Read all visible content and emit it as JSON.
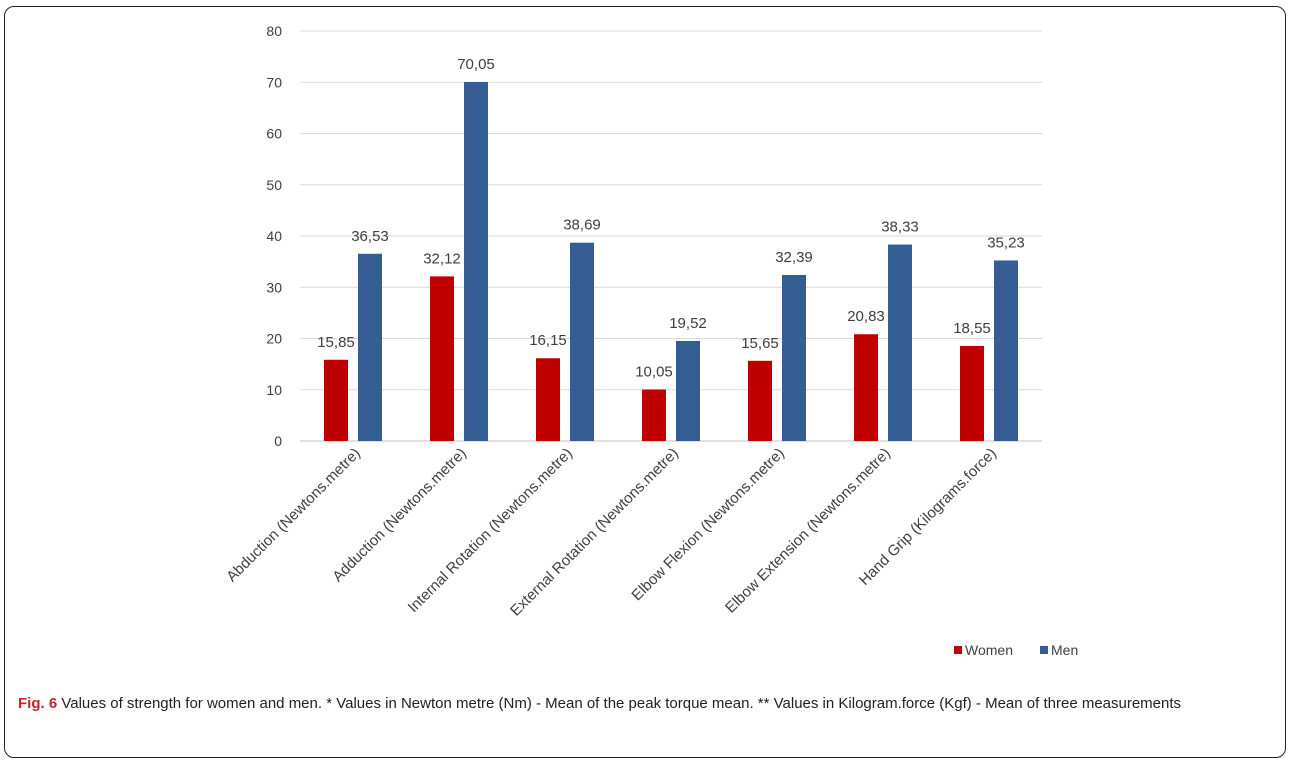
{
  "chart_data": {
    "type": "bar",
    "title": "",
    "xlabel": "",
    "ylabel": "",
    "ylim": [
      0,
      80
    ],
    "yticks": [
      0,
      10,
      20,
      30,
      40,
      50,
      60,
      70,
      80
    ],
    "grid": true,
    "legend_position": "bottom-right",
    "categories": [
      "Abduction (Newtons.metre)",
      "Adduction (Newtons.metre)",
      "Internal Rotation (Newtons.metre)",
      "External Rotation (Newtons.metre)",
      "Elbow Flexion (Newtons.metre)",
      "Elbow Extension (Newtons.metre)",
      "Hand Grip (Kilograms.force)"
    ],
    "series": [
      {
        "name": "Women",
        "color": "#c00000",
        "values": [
          15.85,
          32.12,
          16.15,
          10.05,
          15.65,
          20.83,
          18.55
        ],
        "labels": [
          "15,85",
          "32,12",
          "16,15",
          "10,05",
          "15,65",
          "20,83",
          "18,55"
        ]
      },
      {
        "name": "Men",
        "color": "#345d93",
        "values": [
          36.53,
          70.05,
          38.69,
          19.52,
          32.39,
          38.33,
          35.23
        ],
        "labels": [
          "36,53",
          "70,05",
          "38,69",
          "19,52",
          "32,39",
          "38,33",
          "35,23"
        ]
      }
    ]
  },
  "caption": {
    "fig_label": "Fig. 6",
    "text": " Values of strength for women and men. * Values in Newton metre (Nm) - Mean of the peak torque mean. ** Values in Kilogram.force (Kgf) - Mean of three measurements"
  }
}
